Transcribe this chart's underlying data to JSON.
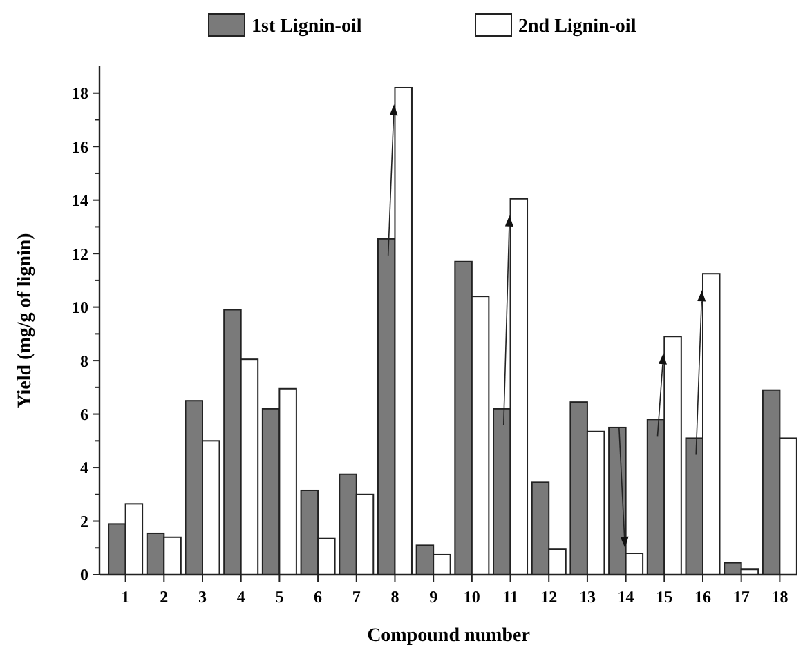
{
  "chart_data": {
    "type": "bar",
    "xlabel": "Compound number",
    "ylabel": "Yield (mg/g of lignin)",
    "categories": [
      "1",
      "2",
      "3",
      "4",
      "5",
      "6",
      "7",
      "8",
      "9",
      "10",
      "11",
      "12",
      "13",
      "14",
      "15",
      "16",
      "17",
      "18"
    ],
    "series": [
      {
        "name": "1st Lignin-oil",
        "color": "#7a7a7a",
        "values": [
          1.9,
          1.55,
          6.5,
          9.9,
          6.2,
          3.15,
          3.75,
          12.55,
          1.1,
          11.7,
          6.2,
          3.45,
          6.45,
          5.5,
          5.8,
          5.1,
          0.45,
          6.9
        ]
      },
      {
        "name": "2nd Lignin-oil",
        "color": "#ffffff",
        "values": [
          2.65,
          1.4,
          5.0,
          8.05,
          6.95,
          1.35,
          3.0,
          18.2,
          0.75,
          10.4,
          14.05,
          0.95,
          5.35,
          0.8,
          8.9,
          11.25,
          0.2,
          5.1
        ]
      }
    ],
    "ylim": [
      0,
      19
    ],
    "yticks": [
      0,
      2,
      4,
      6,
      8,
      10,
      12,
      14,
      16,
      18
    ],
    "grid": false,
    "legend": "top"
  }
}
